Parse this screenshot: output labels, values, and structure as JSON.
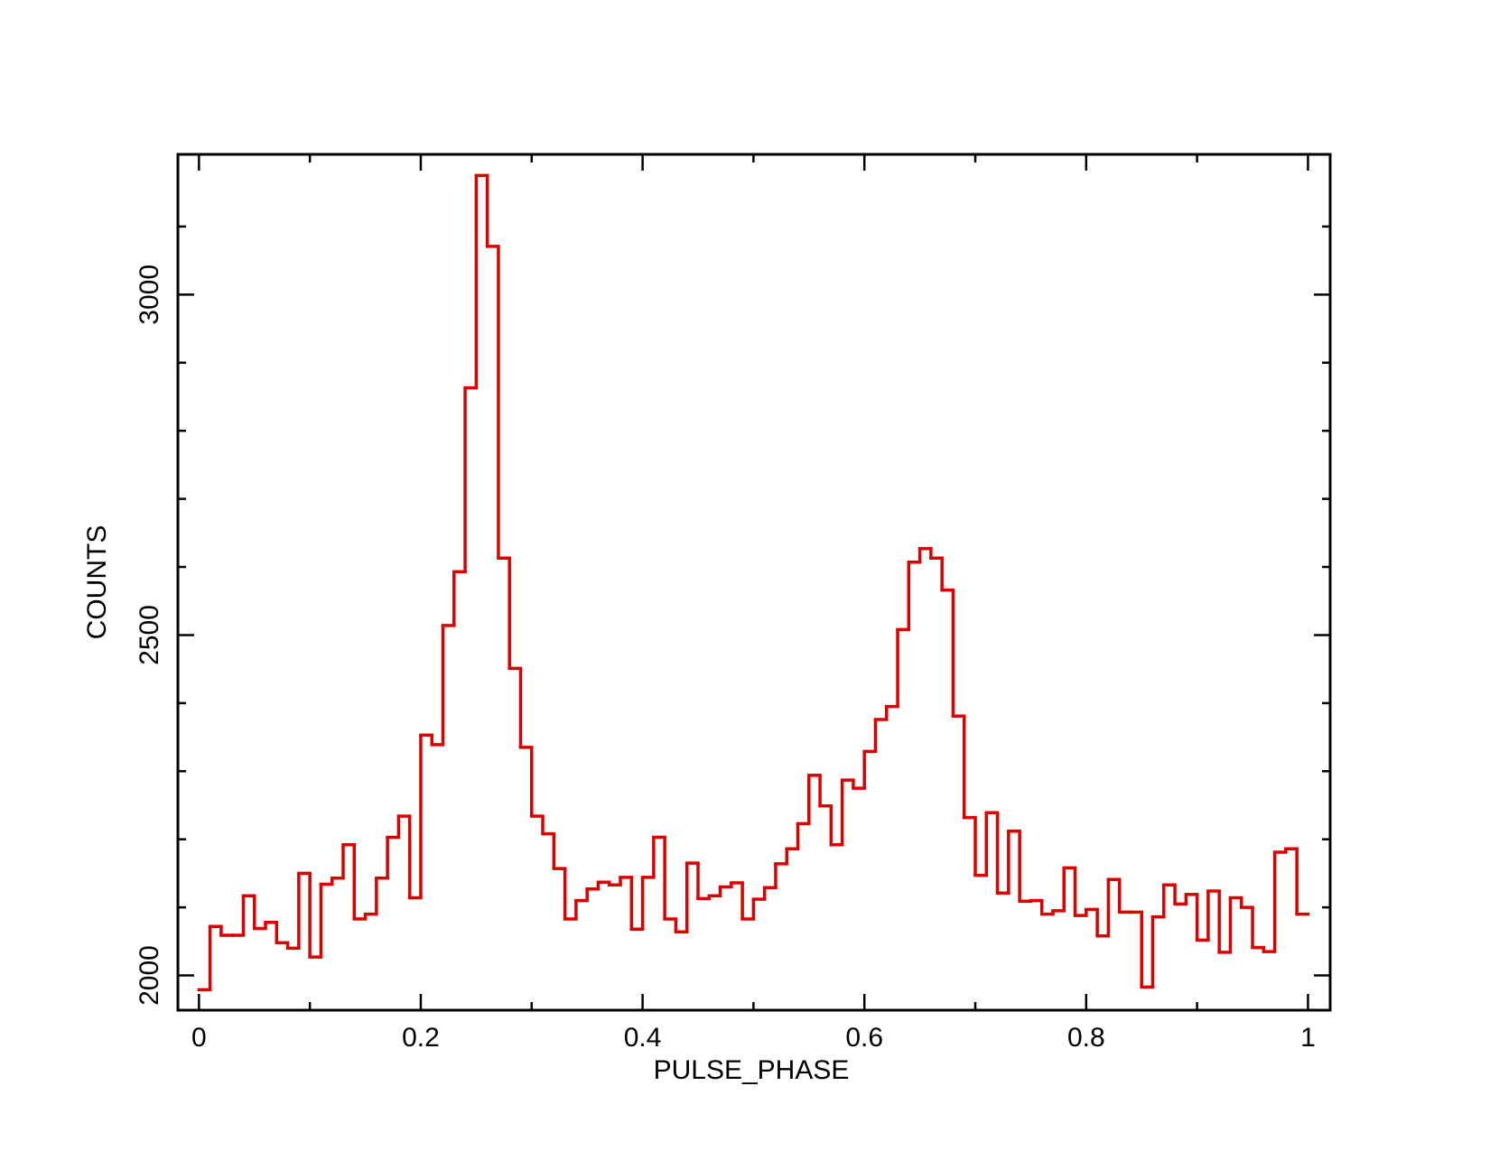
{
  "chart_data": {
    "type": "histogram",
    "xlabel": "PULSE_PHASE",
    "ylabel": "COUNTS",
    "color": "#dd0000",
    "bins": [
      0,
      0.01,
      0.02,
      0.03,
      0.04,
      0.05,
      0.06,
      0.07,
      0.08,
      0.09,
      0.1,
      0.11,
      0.12,
      0.13,
      0.14,
      0.15,
      0.16,
      0.17,
      0.18,
      0.19,
      0.2,
      0.21,
      0.22,
      0.23,
      0.24,
      0.25,
      0.26,
      0.27,
      0.28,
      0.29,
      0.3,
      0.31,
      0.32,
      0.33,
      0.34,
      0.35,
      0.36,
      0.37,
      0.38,
      0.39,
      0.4,
      0.41,
      0.42,
      0.43,
      0.44,
      0.45,
      0.46,
      0.47,
      0.48,
      0.49,
      0.5,
      0.51,
      0.52,
      0.53,
      0.54,
      0.55,
      0.56,
      0.57,
      0.58,
      0.59,
      0.6,
      0.61,
      0.62,
      0.63,
      0.64,
      0.65,
      0.66,
      0.67,
      0.68,
      0.69,
      0.7,
      0.71,
      0.72,
      0.73,
      0.74,
      0.75,
      0.76,
      0.77,
      0.78,
      0.79,
      0.8,
      0.81,
      0.82,
      0.83,
      0.84,
      0.85,
      0.86,
      0.87,
      0.88,
      0.89,
      0.9,
      0.91,
      0.92,
      0.93,
      0.94,
      0.95,
      0.96,
      0.97,
      0.98,
      0.99,
      1
    ],
    "values": [
      1979,
      2072,
      2059,
      2059,
      2117,
      2069,
      2078,
      2048,
      2040,
      2150,
      2027,
      2134,
      2143,
      2192,
      2083,
      2090,
      2143,
      2203,
      2234,
      2114,
      2353,
      2339,
      2514,
      2593,
      2863,
      3175,
      3071,
      2613,
      2451,
      2335,
      2234,
      2208,
      2157,
      2083,
      2110,
      2127,
      2137,
      2133,
      2144,
      2068,
      2144,
      2203,
      2083,
      2064,
      2165,
      2113,
      2117,
      2130,
      2136,
      2083,
      2112,
      2129,
      2164,
      2186,
      2223,
      2294,
      2249,
      2192,
      2287,
      2275,
      2329,
      2376,
      2395,
      2508,
      2607,
      2627,
      2613,
      2566,
      2381,
      2232,
      2147,
      2239,
      2121,
      2212,
      2109,
      2110,
      2090,
      2095,
      2158,
      2088,
      2097,
      2058,
      2141,
      2093,
      2093,
      1983,
      2086,
      2133,
      2105,
      2119,
      2052,
      2124,
      2034,
      2114,
      2100,
      2041,
      2035,
      2181,
      2186,
      2090
    ],
    "xlim": [
      -0.019,
      1.02
    ],
    "ylim": [
      1949,
      3206
    ],
    "xticks": [
      0,
      0.2,
      0.4,
      0.6,
      0.8,
      1
    ],
    "xminorticks": [
      0.1,
      0.3,
      0.5,
      0.7,
      0.9
    ],
    "yticks": [
      2000,
      2500,
      3000
    ],
    "yminorticks": [
      2100,
      2200,
      2300,
      2400,
      2600,
      2700,
      2800,
      2900,
      3100
    ]
  }
}
